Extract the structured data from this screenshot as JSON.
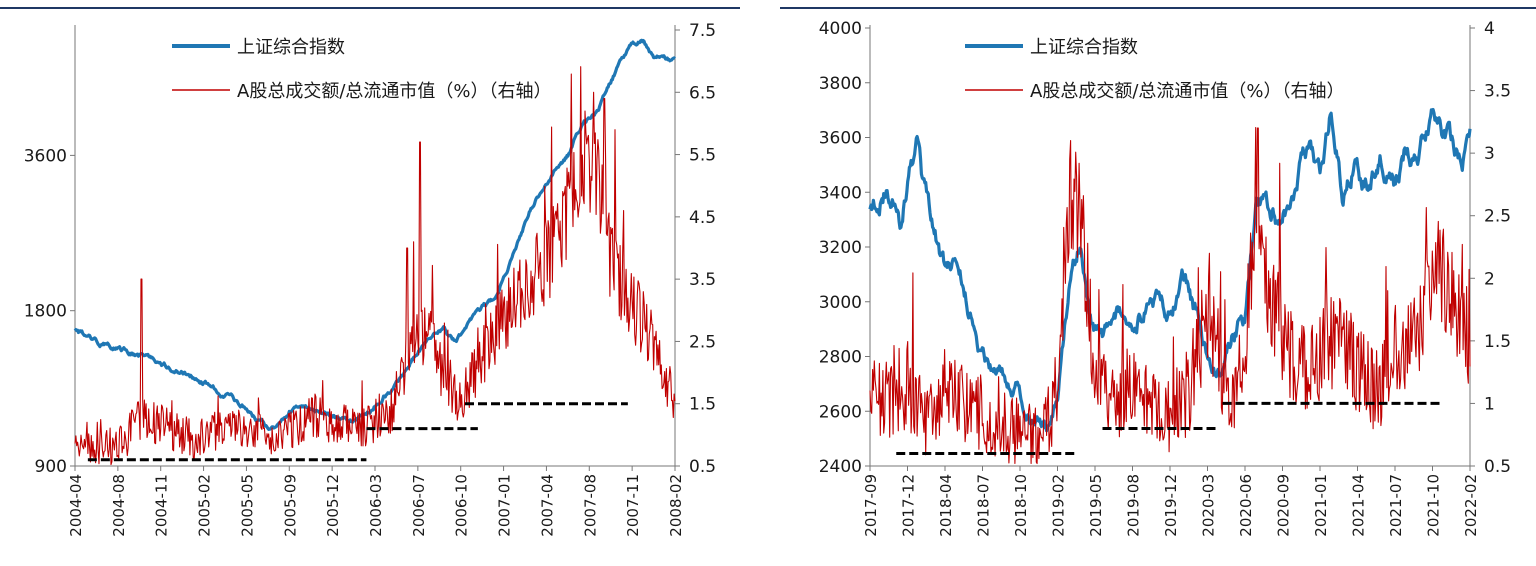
{
  "chart_data": [
    {
      "type": "line",
      "x_ticks": [
        "2004-04",
        "2004-08",
        "2004-11",
        "2005-02",
        "2005-05",
        "2005-09",
        "2005-12",
        "2006-03",
        "2006-07",
        "2006-10",
        "2007-01",
        "2007-04",
        "2007-08",
        "2007-11",
        "2008-02"
      ],
      "y_left": {
        "ticks": [
          900,
          1800,
          3600
        ],
        "range": [
          900,
          6300
        ]
      },
      "y_right": {
        "ticks": [
          "0.5",
          "1.5",
          "2.5",
          "3.5",
          "4.5",
          "5.5",
          "6.5",
          "7.5"
        ],
        "range": [
          0.5,
          7.5
        ]
      },
      "legend_placement": "top-center",
      "grid": false,
      "series": [
        {
          "name": "上证综合指数",
          "axis": "left",
          "color": "#1f77b4",
          "anchors": [
            [
              0,
              1650
            ],
            [
              0.6,
              1560
            ],
            [
              1.2,
              1500
            ],
            [
              2,
              1430
            ],
            [
              2.8,
              1340
            ],
            [
              3.3,
              1260
            ],
            [
              3.8,
              1200
            ],
            [
              4.3,
              1100
            ],
            [
              4.7,
              1060
            ],
            [
              5.0,
              1160
            ],
            [
              5.4,
              1170
            ],
            [
              6.0,
              1120
            ],
            [
              6.5,
              1100
            ],
            [
              6.9,
              1160
            ],
            [
              7.2,
              1240
            ],
            [
              7.6,
              1320
            ],
            [
              8.0,
              1500
            ],
            [
              8.3,
              1620
            ],
            [
              8.6,
              1660
            ],
            [
              8.9,
              1560
            ],
            [
              9.2,
              1700
            ],
            [
              9.5,
              1820
            ],
            [
              9.8,
              1900
            ],
            [
              10.2,
              2300
            ],
            [
              10.6,
              2800
            ],
            [
              11.0,
              3200
            ],
            [
              11.5,
              3600
            ],
            [
              11.8,
              4100
            ],
            [
              12.2,
              4400
            ],
            [
              12.6,
              5200
            ],
            [
              13.0,
              5900
            ],
            [
              13.25,
              6000
            ],
            [
              13.5,
              5600
            ],
            [
              14.0,
              5450
            ],
            [
              14.2,
              4600
            ],
            [
              14.45,
              4350
            ],
            [
              14.6,
              4300
            ]
          ]
        },
        {
          "name": "A股总成交额/总流通市值（%）（右轴）",
          "axis": "right",
          "color": "#c00000",
          "anchors": [
            [
              0,
              0.95
            ],
            [
              0.5,
              0.85
            ],
            [
              1,
              0.8
            ],
            [
              1.6,
              1.3
            ],
            [
              2.2,
              1.1
            ],
            [
              2.8,
              0.9
            ],
            [
              3.3,
              1.05
            ],
            [
              3.9,
              1.15
            ],
            [
              4.5,
              0.95
            ],
            [
              5.1,
              1.15
            ],
            [
              5.6,
              1.3
            ],
            [
              6.1,
              1.2
            ],
            [
              6.6,
              1.1
            ],
            [
              7.0,
              1.25
            ],
            [
              7.4,
              1.4
            ],
            [
              7.8,
              2.3
            ],
            [
              8.2,
              2.7
            ],
            [
              8.6,
              2.0
            ],
            [
              9.0,
              1.5
            ],
            [
              9.4,
              2.1
            ],
            [
              9.8,
              2.6
            ],
            [
              10.3,
              3.3
            ],
            [
              10.8,
              3.6
            ],
            [
              11.3,
              4.1
            ],
            [
              11.8,
              5.2
            ],
            [
              12.2,
              5.0
            ],
            [
              12.5,
              3.8
            ],
            [
              12.9,
              3.2
            ],
            [
              13.2,
              2.9
            ],
            [
              13.6,
              2.2
            ],
            [
              14.0,
              1.6
            ],
            [
              14.3,
              2.0
            ],
            [
              14.6,
              1.4
            ]
          ],
          "spikes": [
            [
              1.55,
              3.5
            ],
            [
              7.75,
              4.0
            ],
            [
              7.9,
              4.1
            ],
            [
              8.05,
              5.7
            ],
            [
              11.9,
              6.2
            ],
            [
              12.1,
              6.5
            ],
            [
              12.35,
              6.4
            ],
            [
              12.6,
              5.9
            ],
            [
              12.8,
              4.6
            ]
          ]
        }
      ],
      "dashed_levels": [
        {
          "x": [
            0.3,
            6.8
          ],
          "y": 0.6
        },
        {
          "x": [
            6.8,
            9.4
          ],
          "y": 1.1
        },
        {
          "x": [
            9.1,
            12.9
          ],
          "y": 1.5
        }
      ]
    },
    {
      "type": "line",
      "x_ticks": [
        "2017-09",
        "2017-12",
        "2018-04",
        "2018-07",
        "2018-10",
        "2019-02",
        "2019-05",
        "2019-08",
        "2019-12",
        "2020-03",
        "2020-06",
        "2020-09",
        "2021-01",
        "2021-04",
        "2021-07",
        "2021-10",
        "2022-02"
      ],
      "y_left": {
        "ticks": [
          2400,
          2600,
          2800,
          3000,
          3200,
          3400,
          3600,
          3800,
          4000
        ],
        "range": [
          2400,
          4000
        ]
      },
      "y_right": {
        "ticks": [
          "0.5",
          "1",
          "1.5",
          "2",
          "2.5",
          "3",
          "3.5",
          "4"
        ],
        "range": [
          0.5,
          4
        ]
      },
      "legend_placement": "top-center",
      "grid": false,
      "series": [
        {
          "name": "上证综合指数",
          "axis": "left",
          "color": "#1f77b4",
          "anchors": [
            [
              0,
              3340
            ],
            [
              0.4,
              3420
            ],
            [
              0.6,
              3380
            ],
            [
              0.8,
              3300
            ],
            [
              1.0,
              3450
            ],
            [
              1.25,
              3560
            ],
            [
              1.4,
              3380
            ],
            [
              1.7,
              3250
            ],
            [
              2.0,
              3120
            ],
            [
              2.3,
              3150
            ],
            [
              2.6,
              3000
            ],
            [
              2.9,
              2850
            ],
            [
              3.2,
              2780
            ],
            [
              3.5,
              2750
            ],
            [
              3.9,
              2700
            ],
            [
              4.2,
              2600
            ],
            [
              4.5,
              2580
            ],
            [
              4.8,
              2520
            ],
            [
              5.0,
              2650
            ],
            [
              5.3,
              3050
            ],
            [
              5.6,
              3200
            ],
            [
              5.9,
              2900
            ],
            [
              6.2,
              2850
            ],
            [
              6.6,
              2950
            ],
            [
              7.0,
              2900
            ],
            [
              7.5,
              3000
            ],
            [
              8.0,
              2950
            ],
            [
              8.4,
              3080
            ],
            [
              8.7,
              2950
            ],
            [
              9.0,
              2780
            ],
            [
              9.3,
              2720
            ],
            [
              9.7,
              2880
            ],
            [
              10.0,
              2950
            ],
            [
              10.3,
              3350
            ],
            [
              10.6,
              3350
            ],
            [
              11.0,
              3300
            ],
            [
              11.4,
              3450
            ],
            [
              11.7,
              3550
            ],
            [
              12.0,
              3500
            ],
            [
              12.3,
              3700
            ],
            [
              12.6,
              3400
            ],
            [
              12.9,
              3500
            ],
            [
              13.3,
              3420
            ],
            [
              13.6,
              3550
            ],
            [
              14.0,
              3450
            ],
            [
              14.3,
              3570
            ],
            [
              14.6,
              3500
            ],
            [
              15.0,
              3700
            ],
            [
              15.4,
              3600
            ],
            [
              15.8,
              3520
            ],
            [
              16.1,
              3640
            ],
            [
              16.4,
              3500
            ],
            [
              16.6,
              3400
            ],
            [
              16.8,
              3450
            ],
            [
              17.0,
              3460
            ]
          ]
        },
        {
          "name": "A股总成交额/总流通市值（%）（右轴）",
          "axis": "right",
          "color": "#c00000",
          "anchors": [
            [
              0,
              1.1
            ],
            [
              0.5,
              1.05
            ],
            [
              1.0,
              1.15
            ],
            [
              1.5,
              0.85
            ],
            [
              2.0,
              1.1
            ],
            [
              2.5,
              1.0
            ],
            [
              3.0,
              0.9
            ],
            [
              3.5,
              0.8
            ],
            [
              4.0,
              0.75
            ],
            [
              4.5,
              0.7
            ],
            [
              4.9,
              0.9
            ],
            [
              5.2,
              2.0
            ],
            [
              5.4,
              2.7
            ],
            [
              5.7,
              2.2
            ],
            [
              6.0,
              1.3
            ],
            [
              6.5,
              1.0
            ],
            [
              7.0,
              1.2
            ],
            [
              7.5,
              1.0
            ],
            [
              8.0,
              0.9
            ],
            [
              8.5,
              1.1
            ],
            [
              9.0,
              1.7
            ],
            [
              9.3,
              1.4
            ],
            [
              9.6,
              1.0
            ],
            [
              10.0,
              1.5
            ],
            [
              10.3,
              2.8
            ],
            [
              10.6,
              2.0
            ],
            [
              11.0,
              1.5
            ],
            [
              11.5,
              1.3
            ],
            [
              12.0,
              1.4
            ],
            [
              12.5,
              1.5
            ],
            [
              13.0,
              1.3
            ],
            [
              13.5,
              1.1
            ],
            [
              14.0,
              1.4
            ],
            [
              14.5,
              1.5
            ],
            [
              15.0,
              1.9
            ],
            [
              15.3,
              2.1
            ],
            [
              15.6,
              1.7
            ],
            [
              16.0,
              1.5
            ],
            [
              16.5,
              1.6
            ],
            [
              16.8,
              1.3
            ],
            [
              17.0,
              1.2
            ]
          ],
          "spikes": [
            [
              5.35,
              3.1
            ],
            [
              10.35,
              3.2
            ],
            [
              9.05,
              2.2
            ]
          ]
        }
      ],
      "dashed_levels": [
        {
          "x": [
            0.7,
            5.5
          ],
          "y": 0.6
        },
        {
          "x": [
            6.2,
            9.3
          ],
          "y": 0.8
        },
        {
          "x": [
            9.4,
            15.2
          ],
          "y": 1.0
        }
      ]
    }
  ]
}
